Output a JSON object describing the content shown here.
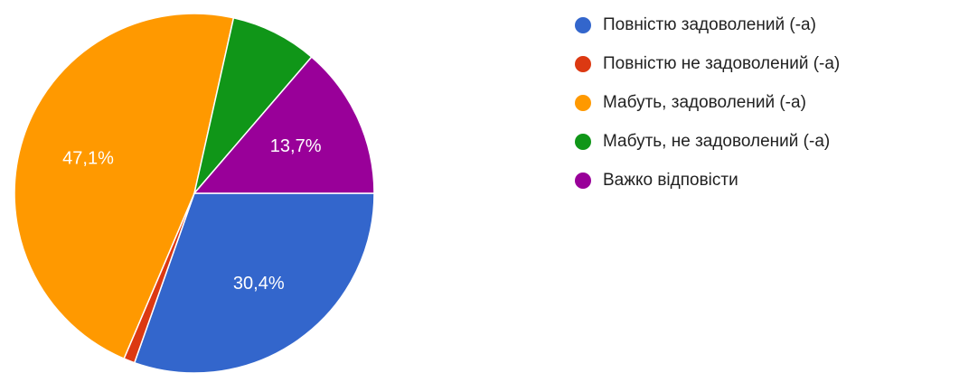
{
  "chart_data": {
    "type": "pie",
    "categories": [
      "Повністю задоволений (-а)",
      "Повністю не задоволений (-а)",
      "Мабуть, задоволений (-а)",
      "Мабуть, не задоволений (-а)",
      "Важко відповісти"
    ],
    "values": [
      30.4,
      1,
      47.1,
      7.8,
      13.7
    ],
    "value_labels": [
      "30,4%",
      null,
      "47,1%",
      null,
      "13,7%"
    ],
    "colors": [
      "#3366cc",
      "#dc3912",
      "#ff9900",
      "#109618",
      "#990099"
    ],
    "legend": "right"
  }
}
